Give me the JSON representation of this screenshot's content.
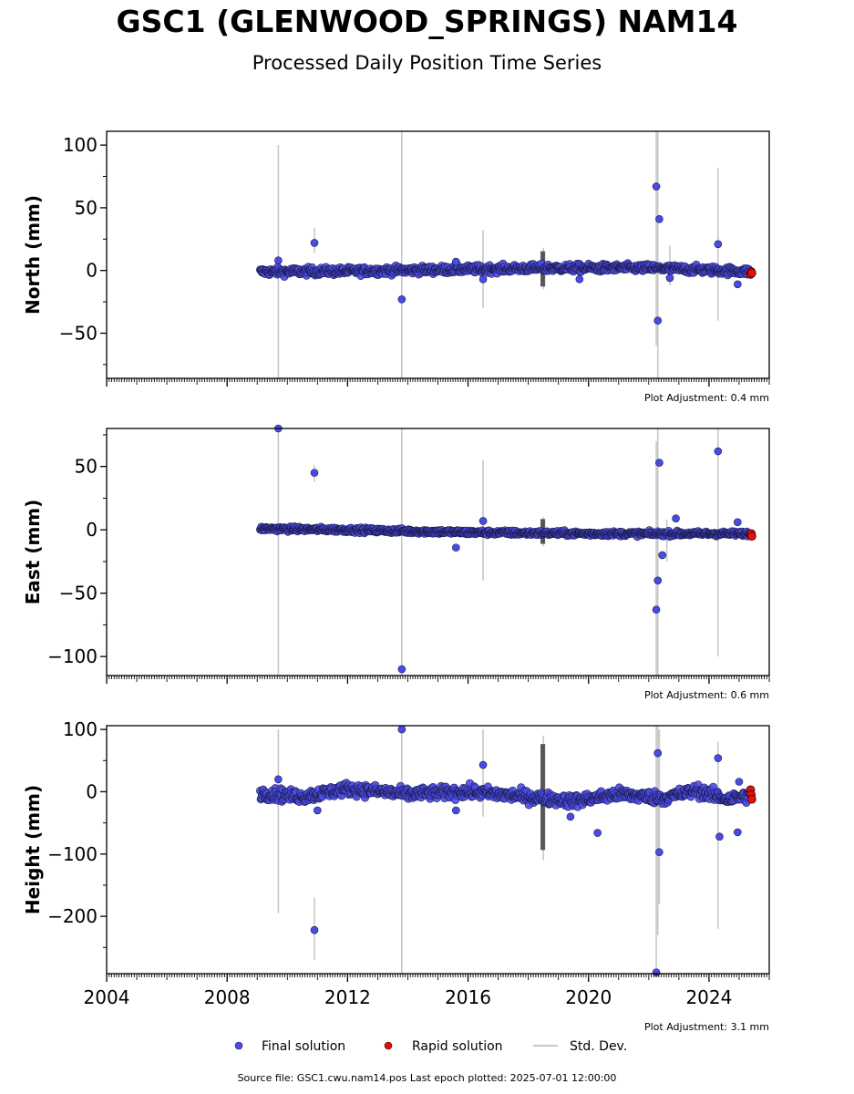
{
  "title": "GSC1 (GLENWOOD_SPRINGS) NAM14",
  "subtitle": "Processed Daily Position Time Series",
  "source_note": "Source file: GSC1.cwu.nam14.pos  Last epoch plotted: 2025-07-01 12:00:00",
  "legend": {
    "final": "Final solution",
    "rapid": "Rapid solution",
    "std": "Std. Dev."
  },
  "colors": {
    "final": "#4a4ae8",
    "rapid": "#e01010",
    "std": "#c8c8c8",
    "axis": "#000000"
  },
  "chart_data": [
    {
      "type": "scatter",
      "ylabel": "North (mm)",
      "adjustment": "Plot Adjustment: 0.4 mm",
      "xlim": [
        2004.0,
        2026.0
      ],
      "ylim": [
        -86,
        111
      ],
      "yticks": [
        100,
        50,
        0,
        -50
      ],
      "ytick_labels": [
        "100",
        "50",
        "0",
        "−50"
      ],
      "series_start": 2009.1,
      "series_end": 2025.35,
      "noise": 2.2,
      "baseline": [
        [
          2009.1,
          -1
        ],
        [
          2012.0,
          -0.5
        ],
        [
          2016.0,
          1
        ],
        [
          2018.5,
          2
        ],
        [
          2022.0,
          2
        ],
        [
          2024.5,
          0
        ],
        [
          2025.4,
          -1
        ]
      ],
      "outliers": [
        [
          2009.7,
          8
        ],
        [
          2010.9,
          22
        ],
        [
          2013.8,
          -23
        ],
        [
          2015.6,
          7
        ],
        [
          2016.5,
          -7
        ],
        [
          2019.7,
          -7
        ],
        [
          2022.25,
          67
        ],
        [
          2022.3,
          -40
        ],
        [
          2022.35,
          41
        ],
        [
          2022.7,
          -6
        ],
        [
          2024.3,
          21
        ],
        [
          2024.95,
          -11
        ]
      ],
      "rapid": [
        [
          2025.38,
          -3
        ],
        [
          2025.4,
          -1
        ],
        [
          2025.42,
          -2
        ]
      ],
      "stddev": [
        [
          2009.7,
          -90,
          100
        ],
        [
          2010.9,
          14,
          34
        ],
        [
          2013.8,
          -90,
          111
        ],
        [
          2016.5,
          -30,
          32
        ],
        [
          2018.5,
          -15,
          18
        ],
        [
          2022.25,
          -60,
          111
        ],
        [
          2022.3,
          -90,
          111
        ],
        [
          2022.7,
          -12,
          20
        ],
        [
          2024.3,
          -40,
          82
        ]
      ]
    },
    {
      "type": "scatter",
      "ylabel": "East (mm)",
      "adjustment": "Plot Adjustment: 0.6 mm",
      "xlim": [
        2004.0,
        2026.0
      ],
      "ylim": [
        -115,
        80
      ],
      "yticks": [
        50,
        0,
        -50,
        -100
      ],
      "ytick_labels": [
        "50",
        "0",
        "−50",
        "−100"
      ],
      "series_start": 2009.1,
      "series_end": 2025.35,
      "noise": 1.3,
      "baseline": [
        [
          2009.1,
          1
        ],
        [
          2012.0,
          0
        ],
        [
          2016.0,
          -2
        ],
        [
          2020.0,
          -3
        ],
        [
          2024.0,
          -3
        ],
        [
          2025.4,
          -3
        ]
      ],
      "outliers": [
        [
          2009.7,
          80
        ],
        [
          2010.9,
          45
        ],
        [
          2013.8,
          -110
        ],
        [
          2015.6,
          -14
        ],
        [
          2016.5,
          7
        ],
        [
          2022.25,
          -63
        ],
        [
          2022.3,
          -40
        ],
        [
          2022.35,
          53
        ],
        [
          2022.45,
          -20
        ],
        [
          2022.9,
          9
        ],
        [
          2024.3,
          62
        ],
        [
          2024.95,
          6
        ]
      ],
      "rapid": [
        [
          2025.38,
          -4
        ],
        [
          2025.4,
          -3
        ],
        [
          2025.42,
          -5
        ]
      ],
      "stddev": [
        [
          2009.7,
          -115,
          80
        ],
        [
          2010.9,
          38,
          51
        ],
        [
          2013.8,
          -115,
          80
        ],
        [
          2016.5,
          -40,
          55
        ],
        [
          2018.5,
          -13,
          10
        ],
        [
          2022.25,
          -115,
          70
        ],
        [
          2022.3,
          -115,
          80
        ],
        [
          2022.6,
          -25,
          8
        ],
        [
          2024.3,
          -100,
          80
        ]
      ]
    },
    {
      "type": "scatter",
      "ylabel": "Height (mm)",
      "adjustment": "Plot Adjustment: 3.1 mm",
      "xlim": [
        2004.0,
        2026.0
      ],
      "ylim": [
        -292,
        106
      ],
      "yticks": [
        100,
        0,
        -100,
        -200
      ],
      "ytick_labels": [
        "100",
        "0",
        "−100",
        "−200"
      ],
      "xticks": [
        2004,
        2008,
        2012,
        2016,
        2020,
        2024
      ],
      "xtick_labels": [
        "2004",
        "2008",
        "2012",
        "2016",
        "2020",
        "2024"
      ],
      "series_start": 2009.1,
      "series_end": 2025.35,
      "noise": 7,
      "baseline": [
        [
          2009.1,
          -2
        ],
        [
          2010.5,
          -8
        ],
        [
          2012.0,
          5
        ],
        [
          2014.0,
          -4
        ],
        [
          2016.0,
          0
        ],
        [
          2018.0,
          -8
        ],
        [
          2019.5,
          -15
        ],
        [
          2021.0,
          -4
        ],
        [
          2022.5,
          -10
        ],
        [
          2023.6,
          2
        ],
        [
          2024.6,
          -12
        ],
        [
          2025.4,
          -6
        ]
      ],
      "outliers": [
        [
          2009.7,
          20
        ],
        [
          2010.9,
          -222
        ],
        [
          2011.0,
          -30
        ],
        [
          2013.8,
          100
        ],
        [
          2015.6,
          -30
        ],
        [
          2016.5,
          43
        ],
        [
          2019.4,
          -40
        ],
        [
          2020.3,
          -66
        ],
        [
          2022.25,
          -290
        ],
        [
          2022.3,
          62
        ],
        [
          2022.35,
          -97
        ],
        [
          2024.3,
          54
        ],
        [
          2024.35,
          -72
        ],
        [
          2024.95,
          -65
        ],
        [
          2025.0,
          16
        ]
      ],
      "rapid": [
        [
          2025.38,
          3
        ],
        [
          2025.4,
          -5
        ],
        [
          2025.42,
          -12
        ]
      ],
      "stddev": [
        [
          2009.7,
          -195,
          100
        ],
        [
          2010.9,
          -270,
          -170
        ],
        [
          2013.8,
          -292,
          106
        ],
        [
          2016.5,
          -40,
          100
        ],
        [
          2018.5,
          -110,
          90
        ],
        [
          2022.25,
          -292,
          106
        ],
        [
          2022.3,
          -230,
          106
        ],
        [
          2022.35,
          -180,
          100
        ],
        [
          2024.3,
          -220,
          80
        ]
      ]
    }
  ]
}
